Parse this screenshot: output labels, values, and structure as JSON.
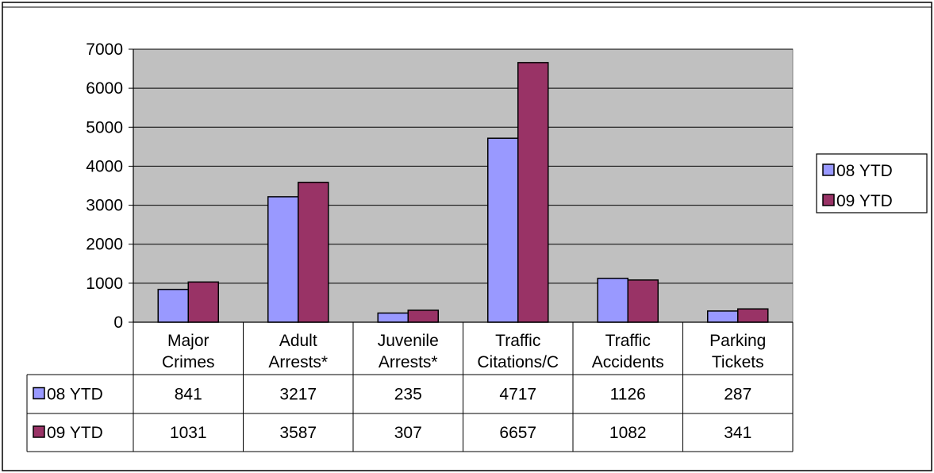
{
  "chart_data": {
    "type": "bar",
    "categories": [
      [
        "Major",
        "Crimes"
      ],
      [
        "Adult",
        "Arrests*"
      ],
      [
        "Juvenile",
        "Arrests*"
      ],
      [
        "Traffic",
        "Citations/C"
      ],
      [
        "Traffic",
        "Accidents"
      ],
      [
        "Parking",
        "Tickets"
      ]
    ],
    "series": [
      {
        "name": "08 YTD",
        "color": "#9999ff",
        "values": [
          841,
          3217,
          235,
          4717,
          1126,
          287
        ]
      },
      {
        "name": "09 YTD",
        "color": "#993366",
        "values": [
          1031,
          3587,
          307,
          6657,
          1082,
          341
        ]
      }
    ],
    "ylim": [
      0,
      7000
    ],
    "yticks": [
      0,
      1000,
      2000,
      3000,
      4000,
      5000,
      6000,
      7000
    ],
    "title": "",
    "xlabel": "",
    "ylabel": "",
    "grid": true,
    "plot_background": "#c0c0c0",
    "legend": "right",
    "data_table": true
  }
}
